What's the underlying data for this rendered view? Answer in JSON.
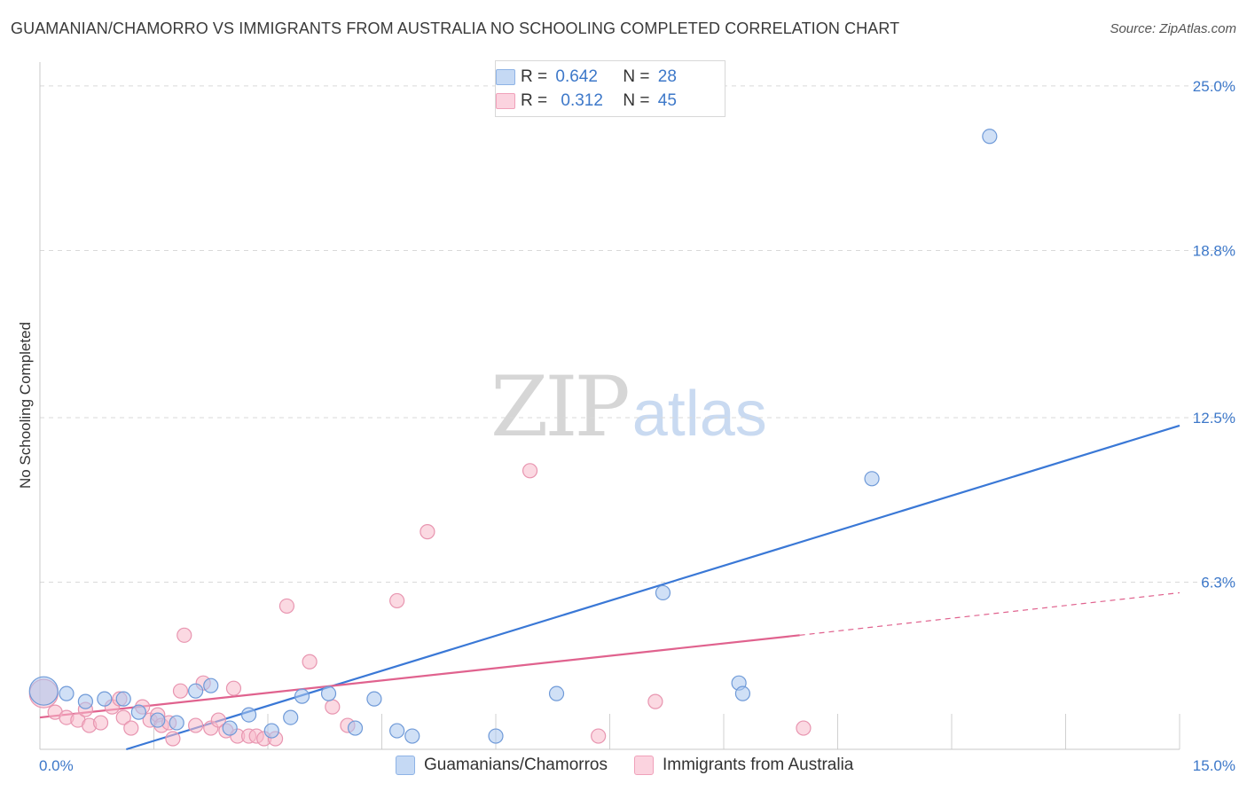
{
  "header": {
    "title": "GUAMANIAN/CHAMORRO VS IMMIGRANTS FROM AUSTRALIA NO SCHOOLING COMPLETED CORRELATION CHART",
    "source": "Source: ZipAtlas.com"
  },
  "watermark": {
    "zip": "ZIP",
    "atlas": "atlas"
  },
  "legend": {
    "series1": {
      "r_label": "R =",
      "r_value": "0.642",
      "n_label": "N =",
      "n_value": "28",
      "color": "#a9c6ee"
    },
    "series2": {
      "r_label": "R =",
      "r_value": "0.312",
      "n_label": "N =",
      "n_value": "45",
      "color": "#f7b9cb"
    }
  },
  "bottom_legend": {
    "series1": "Guamanians/Chamorros",
    "series2": "Immigrants from Australia"
  },
  "chart_data": {
    "type": "scatter",
    "title": "GUAMANIAN/CHAMORRO VS IMMIGRANTS FROM AUSTRALIA NO SCHOOLING COMPLETED CORRELATION CHART",
    "xlabel": "",
    "ylabel": "No Schooling Completed",
    "xlim": [
      0,
      15
    ],
    "ylim": [
      0,
      25.9
    ],
    "x_tick_labels": [
      "0.0%",
      "15.0%"
    ],
    "y_ticks": [
      6.3,
      12.5,
      18.8,
      25.0
    ],
    "y_tick_labels": [
      "6.3%",
      "12.5%",
      "18.8%",
      "25.0%"
    ],
    "grid": true,
    "legend_position": "top-center",
    "colors": {
      "series1": "#3a78d6",
      "series2": "#e0628e",
      "fill1": "#a9c6ee",
      "fill2": "#f7b9cb"
    },
    "series": [
      {
        "name": "Guamanians/Chamorros",
        "trend": {
          "x": [
            0.0,
            15.0
          ],
          "y": [
            -1.0,
            12.2
          ]
        },
        "points": [
          {
            "x": 0.05,
            "y": 2.2,
            "big": true
          },
          {
            "x": 0.35,
            "y": 2.1
          },
          {
            "x": 0.6,
            "y": 1.8
          },
          {
            "x": 0.85,
            "y": 1.9
          },
          {
            "x": 1.1,
            "y": 1.9
          },
          {
            "x": 1.3,
            "y": 1.4
          },
          {
            "x": 1.55,
            "y": 1.1
          },
          {
            "x": 1.8,
            "y": 1.0
          },
          {
            "x": 2.05,
            "y": 2.2
          },
          {
            "x": 2.25,
            "y": 2.4
          },
          {
            "x": 2.5,
            "y": 0.8
          },
          {
            "x": 2.75,
            "y": 1.3
          },
          {
            "x": 3.05,
            "y": 0.7
          },
          {
            "x": 3.3,
            "y": 1.2
          },
          {
            "x": 3.45,
            "y": 2.0
          },
          {
            "x": 3.8,
            "y": 2.1
          },
          {
            "x": 4.15,
            "y": 0.8
          },
          {
            "x": 4.4,
            "y": 1.9
          },
          {
            "x": 4.7,
            "y": 0.7
          },
          {
            "x": 4.9,
            "y": 0.5
          },
          {
            "x": 6.0,
            "y": 0.5
          },
          {
            "x": 6.8,
            "y": 2.1
          },
          {
            "x": 8.2,
            "y": 5.9
          },
          {
            "x": 9.2,
            "y": 2.5
          },
          {
            "x": 9.25,
            "y": 2.1
          },
          {
            "x": 10.95,
            "y": 10.2
          },
          {
            "x": 12.5,
            "y": 23.1
          }
        ]
      },
      {
        "name": "Immigrants from Australia",
        "trend": {
          "x": [
            0.0,
            10.0
          ],
          "y": [
            1.2,
            4.3
          ]
        },
        "trend_extension": {
          "x": [
            10.0,
            15.0
          ],
          "y": [
            4.3,
            5.9
          ]
        },
        "points": [
          {
            "x": 0.05,
            "y": 2.1,
            "big": true
          },
          {
            "x": 0.2,
            "y": 1.4
          },
          {
            "x": 0.35,
            "y": 1.2
          },
          {
            "x": 0.5,
            "y": 1.1
          },
          {
            "x": 0.6,
            "y": 1.5
          },
          {
            "x": 0.65,
            "y": 0.9
          },
          {
            "x": 0.8,
            "y": 1.0
          },
          {
            "x": 0.95,
            "y": 1.6
          },
          {
            "x": 1.05,
            "y": 1.9
          },
          {
            "x": 1.1,
            "y": 1.2
          },
          {
            "x": 1.2,
            "y": 0.8
          },
          {
            "x": 1.35,
            "y": 1.6
          },
          {
            "x": 1.45,
            "y": 1.1
          },
          {
            "x": 1.55,
            "y": 1.3
          },
          {
            "x": 1.6,
            "y": 0.9
          },
          {
            "x": 1.7,
            "y": 1.0
          },
          {
            "x": 1.75,
            "y": 0.4
          },
          {
            "x": 1.85,
            "y": 2.2
          },
          {
            "x": 1.9,
            "y": 4.3
          },
          {
            "x": 2.05,
            "y": 0.9
          },
          {
            "x": 2.15,
            "y": 2.5
          },
          {
            "x": 2.25,
            "y": 0.8
          },
          {
            "x": 2.35,
            "y": 1.1
          },
          {
            "x": 2.45,
            "y": 0.7
          },
          {
            "x": 2.55,
            "y": 2.3
          },
          {
            "x": 2.6,
            "y": 0.5
          },
          {
            "x": 2.75,
            "y": 0.5
          },
          {
            "x": 2.85,
            "y": 0.5
          },
          {
            "x": 2.95,
            "y": 0.4
          },
          {
            "x": 3.1,
            "y": 0.4
          },
          {
            "x": 3.25,
            "y": 5.4
          },
          {
            "x": 3.55,
            "y": 3.3
          },
          {
            "x": 3.85,
            "y": 1.6
          },
          {
            "x": 4.05,
            "y": 0.9
          },
          {
            "x": 4.7,
            "y": 5.6
          },
          {
            "x": 5.1,
            "y": 8.2
          },
          {
            "x": 6.45,
            "y": 10.5
          },
          {
            "x": 7.35,
            "y": 0.5
          },
          {
            "x": 8.1,
            "y": 1.8
          },
          {
            "x": 10.05,
            "y": 0.8
          }
        ]
      }
    ]
  }
}
